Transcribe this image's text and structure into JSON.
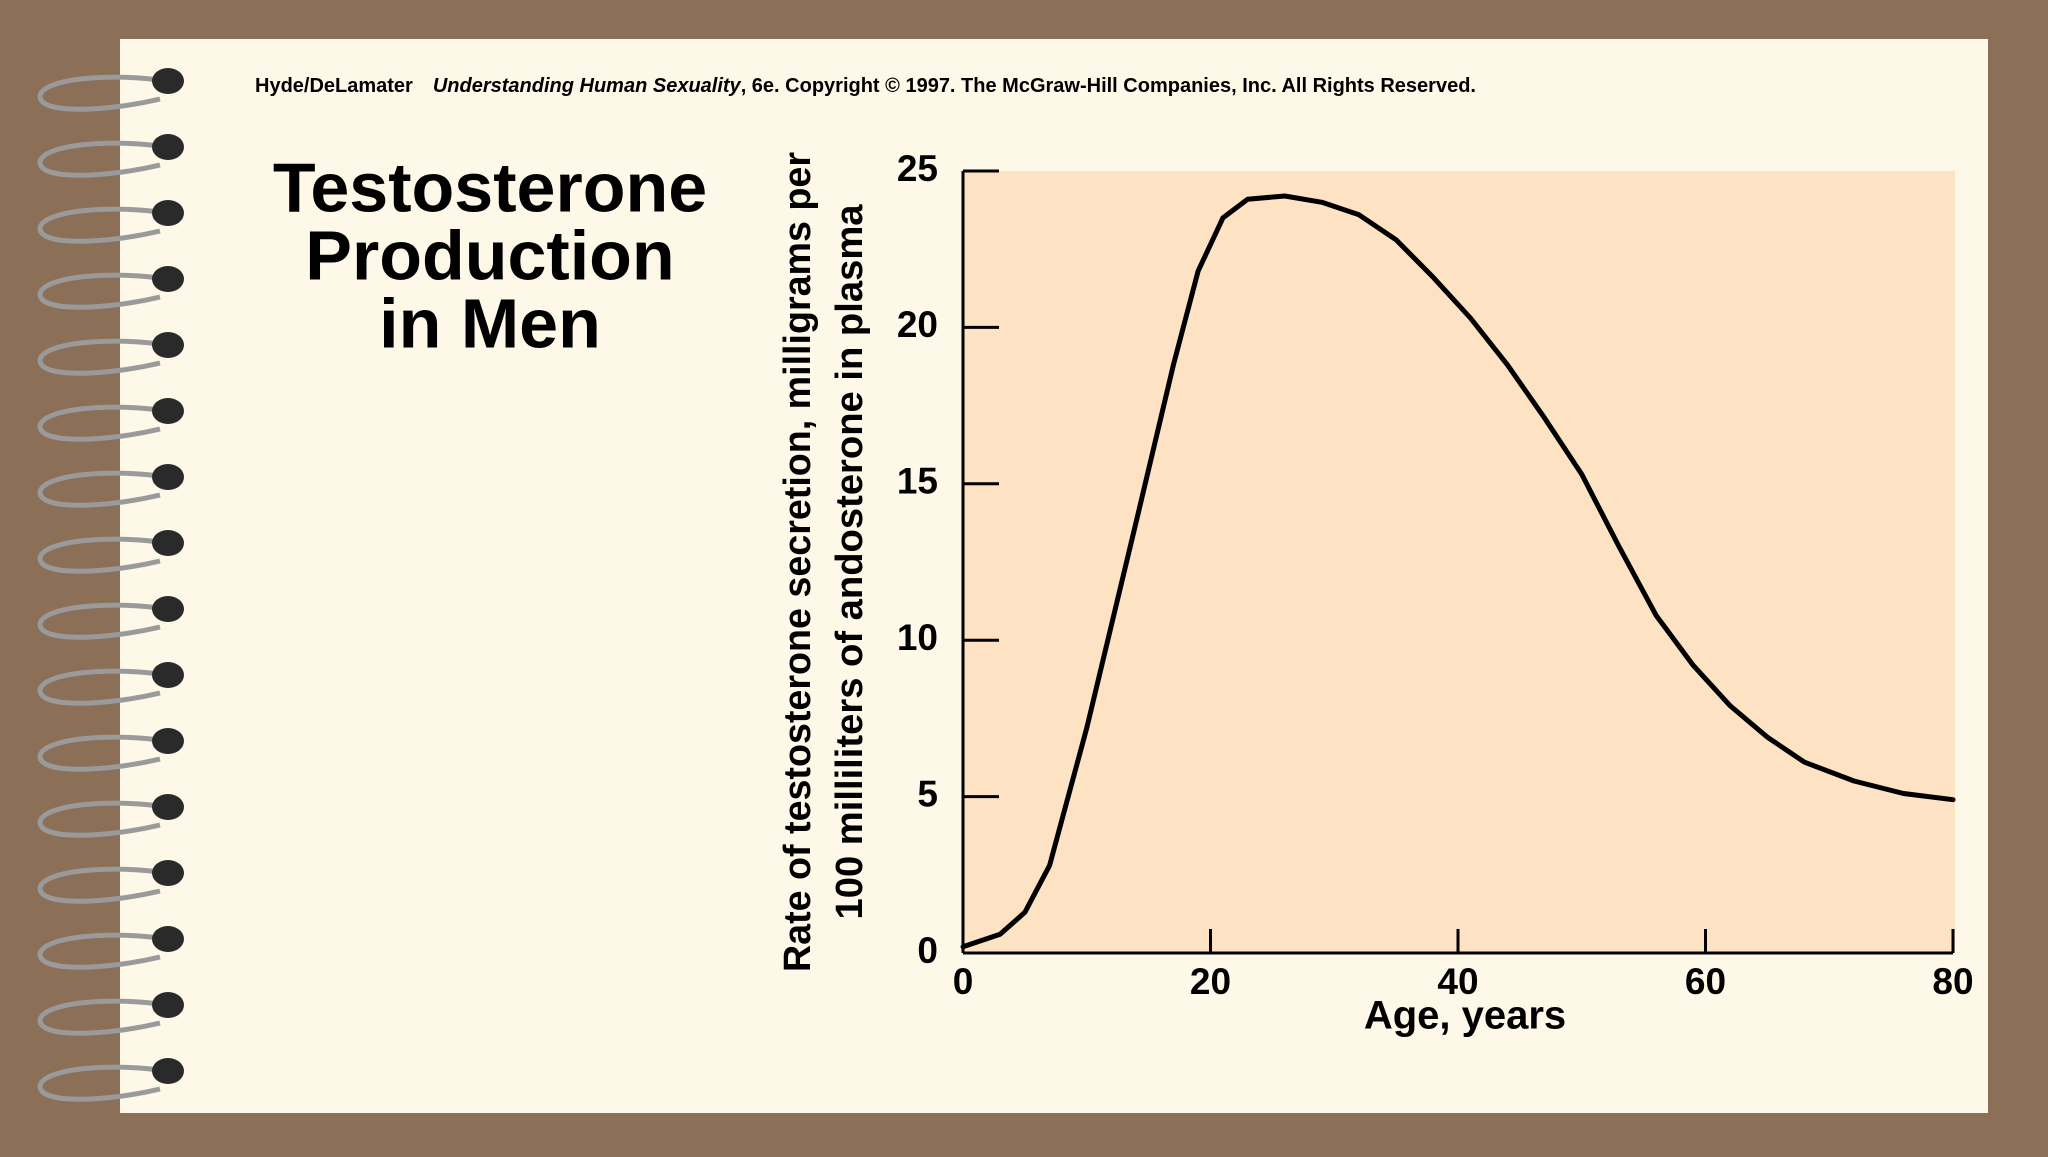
{
  "header": {
    "authors": "Hyde/DeLamater",
    "book": "Understanding Human Sexuality",
    "rest": ", 6e.  Copyright © 1997. The McGraw-Hill Companies, Inc. All Rights Reserved."
  },
  "chart_data": {
    "type": "line",
    "title": [
      "Testosterone",
      "Production",
      "in Men"
    ],
    "ylabel": [
      "Rate of testosterone secretion, milligrams per",
      "100 milliliters of andosterone in plasma"
    ],
    "xlabel": "Age, years",
    "x": [
      0,
      3,
      5,
      7,
      10,
      14,
      17,
      19,
      21,
      23,
      26,
      29,
      32,
      35,
      38,
      41,
      44,
      47,
      50,
      53,
      56,
      59,
      62,
      65,
      68,
      72,
      76,
      80
    ],
    "values": [
      0.2,
      0.6,
      1.3,
      2.8,
      7.2,
      13.8,
      18.8,
      21.8,
      23.5,
      24.1,
      24.2,
      24.0,
      23.6,
      22.8,
      21.6,
      20.3,
      18.8,
      17.1,
      15.3,
      13.0,
      10.8,
      9.2,
      7.9,
      6.9,
      6.1,
      5.5,
      5.1,
      4.9
    ],
    "color": "#000000",
    "xlim": [
      0,
      80
    ],
    "xticks": [
      0,
      20,
      40,
      60,
      80
    ],
    "ylim": [
      0,
      25
    ],
    "yticks": [
      0,
      5,
      10,
      15,
      20,
      25
    ]
  }
}
